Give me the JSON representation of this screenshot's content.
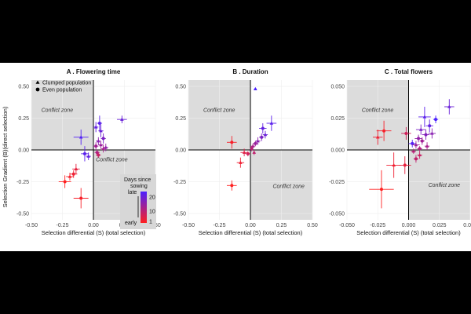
{
  "figure": {
    "ylabel": "Selection Gradient (B)(direct selection)",
    "legend": {
      "shapes": [
        {
          "label": "Clumped population",
          "shape": "triangle"
        },
        {
          "label": "Even population",
          "shape": "circle"
        }
      ],
      "colorbar": {
        "title_line1": "Days since",
        "title_line2": "sowing",
        "ticks": [
          "20",
          "10",
          "1"
        ],
        "top_label": "late",
        "bottom_label": "early",
        "low_color": "#ff2020",
        "high_color": "#4a20ff"
      }
    },
    "colors": {
      "zone": "#dcdcdc",
      "grid": "#eeeeee",
      "axis_line": "#000000"
    }
  },
  "chart_data": [
    {
      "type": "scatter",
      "panel_letter": "A",
      "title": "Flowering time",
      "xlabel": "Selection differential (S) (total selection)",
      "xlim": [
        -0.5,
        0.5
      ],
      "ylim": [
        -0.55,
        0.55
      ],
      "xticks": [
        "-0.50",
        "-0.25",
        "0.00",
        "0.25",
        "0.50"
      ],
      "xtick_values": [
        -0.5,
        -0.25,
        0,
        0.25,
        0.5
      ],
      "yticks": [
        "0.50",
        "0.25",
        "0.00",
        "-0.25",
        "-0.50"
      ],
      "ytick_values": [
        0.5,
        0.25,
        0,
        -0.25,
        -0.5
      ],
      "zone_labels": [
        {
          "text": "Conflict zone",
          "x": -0.42,
          "y": 0.3
        },
        {
          "text": "Conflict zone",
          "x": 0.02,
          "y": -0.09
        }
      ],
      "points": [
        {
          "x": 0.23,
          "y": 0.24,
          "xe": 0.04,
          "ye": 0.03,
          "days": 20,
          "shape": "triangle"
        },
        {
          "x": 0.05,
          "y": 0.21,
          "xe": 0.02,
          "ye": 0.06,
          "days": 22,
          "shape": "circle"
        },
        {
          "x": 0.02,
          "y": 0.18,
          "xe": 0.02,
          "ye": 0.04,
          "days": 21,
          "shape": "triangle"
        },
        {
          "x": 0.06,
          "y": 0.15,
          "xe": 0.02,
          "ye": 0.05,
          "days": 20,
          "shape": "triangle"
        },
        {
          "x": 0.08,
          "y": 0.09,
          "xe": 0.02,
          "ye": 0.04,
          "days": 18,
          "shape": "circle"
        },
        {
          "x": 0.04,
          "y": 0.07,
          "xe": 0.02,
          "ye": 0.03,
          "days": 16,
          "shape": "triangle"
        },
        {
          "x": 0.06,
          "y": 0.04,
          "xe": 0.02,
          "ye": 0.03,
          "days": 14,
          "shape": "triangle"
        },
        {
          "x": 0.02,
          "y": 0.03,
          "xe": 0.02,
          "ye": 0.03,
          "days": 13,
          "shape": "circle"
        },
        {
          "x": 0.08,
          "y": 0.01,
          "xe": 0.02,
          "ye": 0.03,
          "days": 12,
          "shape": "triangle"
        },
        {
          "x": 0.03,
          "y": -0.02,
          "xe": 0.02,
          "ye": 0.02,
          "days": 11,
          "shape": "circle"
        },
        {
          "x": 0.1,
          "y": 0.02,
          "xe": 0.02,
          "ye": 0.03,
          "days": 15,
          "shape": "triangle"
        },
        {
          "x": 0.04,
          "y": -0.04,
          "xe": 0.02,
          "ye": 0.02,
          "days": 8,
          "shape": "circle"
        },
        {
          "x": -0.1,
          "y": 0.1,
          "xe": 0.06,
          "ye": 0.06,
          "days": 23,
          "shape": "triangle"
        },
        {
          "x": -0.07,
          "y": -0.03,
          "xe": 0.03,
          "ye": 0.06,
          "days": 22,
          "shape": "circle"
        },
        {
          "x": -0.04,
          "y": -0.05,
          "xe": 0.02,
          "ye": 0.03,
          "days": 21,
          "shape": "triangle"
        },
        {
          "x": -0.14,
          "y": -0.15,
          "xe": 0.03,
          "ye": 0.04,
          "days": 4,
          "shape": "triangle"
        },
        {
          "x": -0.16,
          "y": -0.19,
          "xe": 0.03,
          "ye": 0.03,
          "days": 3,
          "shape": "circle"
        },
        {
          "x": -0.19,
          "y": -0.21,
          "xe": 0.03,
          "ye": 0.03,
          "days": 2,
          "shape": "triangle"
        },
        {
          "x": -0.23,
          "y": -0.25,
          "xe": 0.05,
          "ye": 0.05,
          "days": 1,
          "shape": "circle"
        },
        {
          "x": -0.1,
          "y": -0.38,
          "xe": 0.06,
          "ye": 0.08,
          "days": 2,
          "shape": "circle"
        }
      ]
    },
    {
      "type": "scatter",
      "panel_letter": "B",
      "title": "Duration",
      "xlabel": "Selection differential (S) (total selection)",
      "xlim": [
        -0.5,
        0.5
      ],
      "ylim": [
        -0.55,
        0.55
      ],
      "xticks": [
        "-0.50",
        "-0.25",
        "0.00",
        "0.25",
        "0.50"
      ],
      "xtick_values": [
        -0.5,
        -0.25,
        0,
        0.25,
        0.5
      ],
      "yticks": [
        "0.50",
        "0.25",
        "0.00",
        "-0.25",
        "-0.50"
      ],
      "ytick_values": [
        0.5,
        0.25,
        0,
        -0.25,
        -0.5
      ],
      "zone_labels": [
        {
          "text": "Conflict zone",
          "x": -0.38,
          "y": 0.3
        },
        {
          "text": "Conflict zone",
          "x": 0.18,
          "y": -0.3
        }
      ],
      "points": [
        {
          "x": 0.04,
          "y": 0.48,
          "xe": 0.01,
          "ye": 0.01,
          "days": 24,
          "shape": "triangle"
        },
        {
          "x": 0.17,
          "y": 0.21,
          "xe": 0.04,
          "ye": 0.06,
          "days": 22,
          "shape": "triangle"
        },
        {
          "x": 0.1,
          "y": 0.17,
          "xe": 0.03,
          "ye": 0.04,
          "days": 21,
          "shape": "circle"
        },
        {
          "x": 0.12,
          "y": 0.12,
          "xe": 0.02,
          "ye": 0.03,
          "days": 20,
          "shape": "triangle"
        },
        {
          "x": 0.09,
          "y": 0.1,
          "xe": 0.02,
          "ye": 0.03,
          "days": 18,
          "shape": "circle"
        },
        {
          "x": 0.06,
          "y": 0.07,
          "xe": 0.02,
          "ye": 0.03,
          "days": 16,
          "shape": "triangle"
        },
        {
          "x": 0.04,
          "y": 0.05,
          "xe": 0.02,
          "ye": 0.02,
          "days": 14,
          "shape": "circle"
        },
        {
          "x": 0.02,
          "y": 0.03,
          "xe": 0.02,
          "ye": 0.02,
          "days": 12,
          "shape": "triangle"
        },
        {
          "x": 0.01,
          "y": 0.01,
          "xe": 0.01,
          "ye": 0.02,
          "days": 10,
          "shape": "circle"
        },
        {
          "x": 0.03,
          "y": -0.02,
          "xe": 0.01,
          "ye": 0.02,
          "days": 9,
          "shape": "triangle"
        },
        {
          "x": -0.02,
          "y": -0.03,
          "xe": 0.02,
          "ye": 0.02,
          "days": 7,
          "shape": "circle"
        },
        {
          "x": -0.05,
          "y": -0.02,
          "xe": 0.03,
          "ye": 0.03,
          "days": 5,
          "shape": "triangle"
        },
        {
          "x": -0.15,
          "y": 0.06,
          "xe": 0.04,
          "ye": 0.05,
          "days": 2,
          "shape": "circle"
        },
        {
          "x": -0.08,
          "y": -0.1,
          "xe": 0.03,
          "ye": 0.04,
          "days": 3,
          "shape": "triangle"
        },
        {
          "x": -0.15,
          "y": -0.28,
          "xe": 0.04,
          "ye": 0.04,
          "days": 1,
          "shape": "circle"
        }
      ]
    },
    {
      "type": "scatter",
      "panel_letter": "C",
      "title": "Total flowers",
      "xlabel": "Selection differential (S) (total selection)",
      "xlim": [
        -0.05,
        0.05
      ],
      "ylim": [
        -0.055,
        0.055
      ],
      "xticks": [
        "-0.050",
        "-0.025",
        "0.000",
        "0.025",
        "0.050"
      ],
      "xtick_values": [
        -0.05,
        -0.025,
        0,
        0.025,
        0.05
      ],
      "yticks": [
        "0.050",
        "0.025",
        "0.000",
        "-0.025",
        "-0.050"
      ],
      "ytick_values": [
        0.05,
        0.025,
        0,
        -0.025,
        -0.05
      ],
      "zone_labels": [
        {
          "text": "Conflict zone",
          "x": -0.038,
          "y": 0.03
        },
        {
          "text": "Conflict zone",
          "x": 0.016,
          "y": -0.029
        }
      ],
      "points": [
        {
          "x": 0.033,
          "y": 0.034,
          "xe": 0.004,
          "ye": 0.006,
          "days": 20,
          "shape": "triangle"
        },
        {
          "x": 0.022,
          "y": 0.024,
          "xe": 0.002,
          "ye": 0.003,
          "days": 24,
          "shape": "circle"
        },
        {
          "x": 0.013,
          "y": 0.026,
          "xe": 0.005,
          "ye": 0.008,
          "days": 22,
          "shape": "triangle"
        },
        {
          "x": 0.017,
          "y": 0.019,
          "xe": 0.003,
          "ye": 0.005,
          "days": 21,
          "shape": "circle"
        },
        {
          "x": 0.01,
          "y": 0.016,
          "xe": 0.004,
          "ye": 0.004,
          "days": 18,
          "shape": "triangle"
        },
        {
          "x": 0.014,
          "y": 0.012,
          "xe": 0.003,
          "ye": 0.004,
          "days": 17,
          "shape": "circle"
        },
        {
          "x": 0.019,
          "y": 0.013,
          "xe": 0.003,
          "ye": 0.004,
          "days": 16,
          "shape": "triangle"
        },
        {
          "x": 0.008,
          "y": 0.009,
          "xe": 0.003,
          "ye": 0.003,
          "days": 15,
          "shape": "circle"
        },
        {
          "x": 0.003,
          "y": 0.005,
          "xe": 0.003,
          "ye": 0.003,
          "days": 23,
          "shape": "circle"
        },
        {
          "x": 0.006,
          "y": 0.004,
          "xe": 0.003,
          "ye": 0.003,
          "days": 14,
          "shape": "triangle"
        },
        {
          "x": 0.011,
          "y": 0.007,
          "xe": 0.002,
          "ye": 0.003,
          "days": 13,
          "shape": "circle"
        },
        {
          "x": 0.015,
          "y": 0.003,
          "xe": 0.002,
          "ye": 0.003,
          "days": 12,
          "shape": "triangle"
        },
        {
          "x": 0.009,
          "y": 0.001,
          "xe": 0.002,
          "ye": 0.002,
          "days": 11,
          "shape": "circle"
        },
        {
          "x": 0.004,
          "y": -0.001,
          "xe": 0.002,
          "ye": 0.002,
          "days": 10,
          "shape": "triangle"
        },
        {
          "x": 0.006,
          "y": -0.007,
          "xe": 0.002,
          "ye": 0.003,
          "days": 9,
          "shape": "circle"
        },
        {
          "x": 0.009,
          "y": -0.004,
          "xe": 0.002,
          "ye": 0.003,
          "days": 8,
          "shape": "triangle"
        },
        {
          "x": -0.002,
          "y": 0.013,
          "xe": 0.004,
          "ye": 0.005,
          "days": 7,
          "shape": "circle"
        },
        {
          "x": -0.02,
          "y": 0.015,
          "xe": 0.006,
          "ye": 0.008,
          "days": 2,
          "shape": "circle"
        },
        {
          "x": -0.025,
          "y": 0.01,
          "xe": 0.004,
          "ye": 0.006,
          "days": 3,
          "shape": "triangle"
        },
        {
          "x": -0.003,
          "y": -0.012,
          "xe": 0.005,
          "ye": 0.007,
          "days": 4,
          "shape": "circle"
        },
        {
          "x": -0.012,
          "y": -0.012,
          "xe": 0.006,
          "ye": 0.01,
          "days": 3,
          "shape": "triangle"
        },
        {
          "x": -0.022,
          "y": -0.031,
          "xe": 0.01,
          "ye": 0.015,
          "days": 1,
          "shape": "circle"
        }
      ]
    }
  ]
}
